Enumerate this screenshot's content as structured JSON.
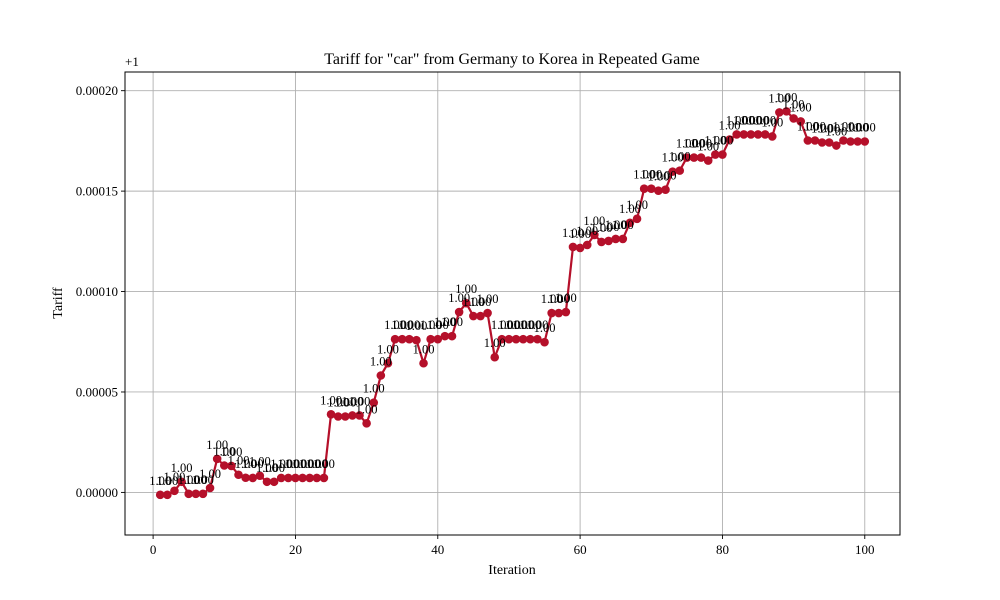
{
  "chart_data": {
    "type": "line",
    "title": "Tariff for \"car\" from Germany to Korea in Repeated Game",
    "xlabel": "Iteration",
    "ylabel": "Tariff",
    "offset_label": "+1",
    "xlim": [
      -3.95,
      104.95
    ],
    "ylim": [
      -2.12e-05,
      0.0002093
    ],
    "xticks": [
      0,
      20,
      40,
      60,
      80,
      100
    ],
    "xtick_labels": [
      "0",
      "20",
      "40",
      "60",
      "80",
      "100"
    ],
    "yticks": [
      0.0,
      5e-05,
      0.0001,
      0.00015,
      0.0002
    ],
    "ytick_labels": [
      "0.00000",
      "0.00005",
      "0.00010",
      "0.00015",
      "0.00020"
    ],
    "grid": true,
    "line_color": "#b5102a",
    "point_label": "1.00",
    "series": [
      {
        "x": [
          1,
          2,
          3,
          4,
          5,
          6,
          7,
          8,
          9,
          10,
          11,
          12,
          13,
          14,
          15,
          16,
          17,
          18,
          19,
          20,
          21,
          22,
          23,
          24,
          25,
          26,
          27,
          28,
          29,
          30,
          31,
          32,
          33,
          34,
          35,
          36,
          37,
          38,
          39,
          40,
          41,
          42,
          43,
          44,
          45,
          46,
          47,
          48,
          49,
          50,
          51,
          52,
          53,
          54,
          55,
          56,
          57,
          58,
          59,
          60,
          61,
          62,
          63,
          64,
          65,
          66,
          67,
          68,
          69,
          70,
          71,
          72,
          73,
          74,
          75,
          76,
          77,
          78,
          79,
          80,
          81,
          82,
          83,
          84,
          85,
          86,
          87,
          88,
          89,
          90,
          91,
          92,
          93,
          94,
          95,
          96,
          97,
          98,
          99,
          100
        ],
        "values": [
          -1.2e-06,
          -1.2e-06,
          8e-07,
          5.3e-06,
          -7e-07,
          -7e-07,
          -7e-07,
          2.2e-06,
          1.67e-05,
          1.34e-05,
          1.32e-05,
          8.8e-06,
          7.3e-06,
          7.2e-06,
          8.3e-06,
          5.3e-06,
          5.3e-06,
          7.2e-06,
          7.2e-06,
          7.2e-06,
          7.2e-06,
          7.2e-06,
          7.2e-06,
          7.2e-06,
          3.89e-05,
          3.78e-05,
          3.78e-05,
          3.83e-05,
          3.83e-05,
          3.44e-05,
          4.47e-05,
          5.82e-05,
          6.43e-05,
          7.63e-05,
          7.63e-05,
          7.63e-05,
          7.58e-05,
          6.43e-05,
          7.63e-05,
          7.63e-05,
          7.78e-05,
          7.78e-05,
          8.98e-05,
          9.42e-05,
          8.78e-05,
          8.78e-05,
          8.93e-05,
          6.73e-05,
          7.63e-05,
          7.63e-05,
          7.63e-05,
          7.63e-05,
          7.63e-05,
          7.63e-05,
          7.48e-05,
          8.93e-05,
          8.93e-05,
          8.98e-05,
          0.0001222,
          0.0001217,
          0.0001232,
          0.0001282,
          0.0001247,
          0.0001252,
          0.0001262,
          0.0001262,
          0.0001342,
          0.0001362,
          0.0001512,
          0.0001512,
          0.0001502,
          0.0001507,
          0.0001597,
          0.0001602,
          0.0001667,
          0.0001667,
          0.0001667,
          0.0001652,
          0.0001682,
          0.0001682,
          0.0001757,
          0.0001782,
          0.0001782,
          0.0001782,
          0.0001782,
          0.0001782,
          0.0001772,
          0.0001892,
          0.0001897,
          0.0001862,
          0.0001847,
          0.0001752,
          0.0001752,
          0.0001742,
          0.0001742,
          0.0001727,
          0.0001752,
          0.0001747,
          0.0001747,
          0.0001747
        ]
      }
    ]
  }
}
